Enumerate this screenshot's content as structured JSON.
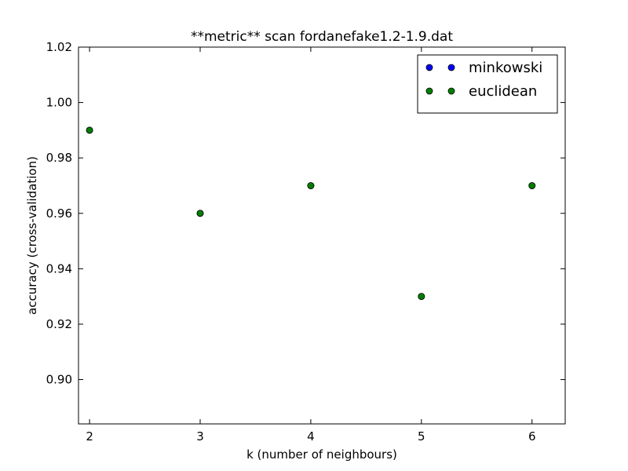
{
  "chart_data": {
    "type": "scatter",
    "title": "**metric** scan fordanefake1.2-1.9.dat",
    "xlabel": "k (number of neighbours)",
    "ylabel": "accuracy (cross-validation)",
    "xlim": [
      1.9,
      6.3
    ],
    "ylim": [
      0.884,
      1.02
    ],
    "xticks": [
      2,
      3,
      4,
      5,
      6
    ],
    "xtick_labels": [
      "2",
      "3",
      "4",
      "5",
      "6"
    ],
    "yticks": [
      0.9,
      0.92,
      0.94,
      0.96,
      0.98,
      1.0,
      1.02
    ],
    "ytick_labels": [
      "0.90",
      "0.92",
      "0.94",
      "0.96",
      "0.98",
      "1.00",
      "1.02"
    ],
    "grid": false,
    "legend_position": "top-right",
    "series": [
      {
        "name": "minkowski",
        "color": "#0000ff",
        "x": [
          2,
          3,
          4,
          5,
          6
        ],
        "y": [
          0.99,
          0.96,
          0.97,
          0.93,
          0.97
        ]
      },
      {
        "name": "euclidean",
        "color": "#008000",
        "x": [
          2,
          3,
          4,
          5,
          6
        ],
        "y": [
          0.99,
          0.96,
          0.97,
          0.93,
          0.97
        ]
      }
    ]
  }
}
